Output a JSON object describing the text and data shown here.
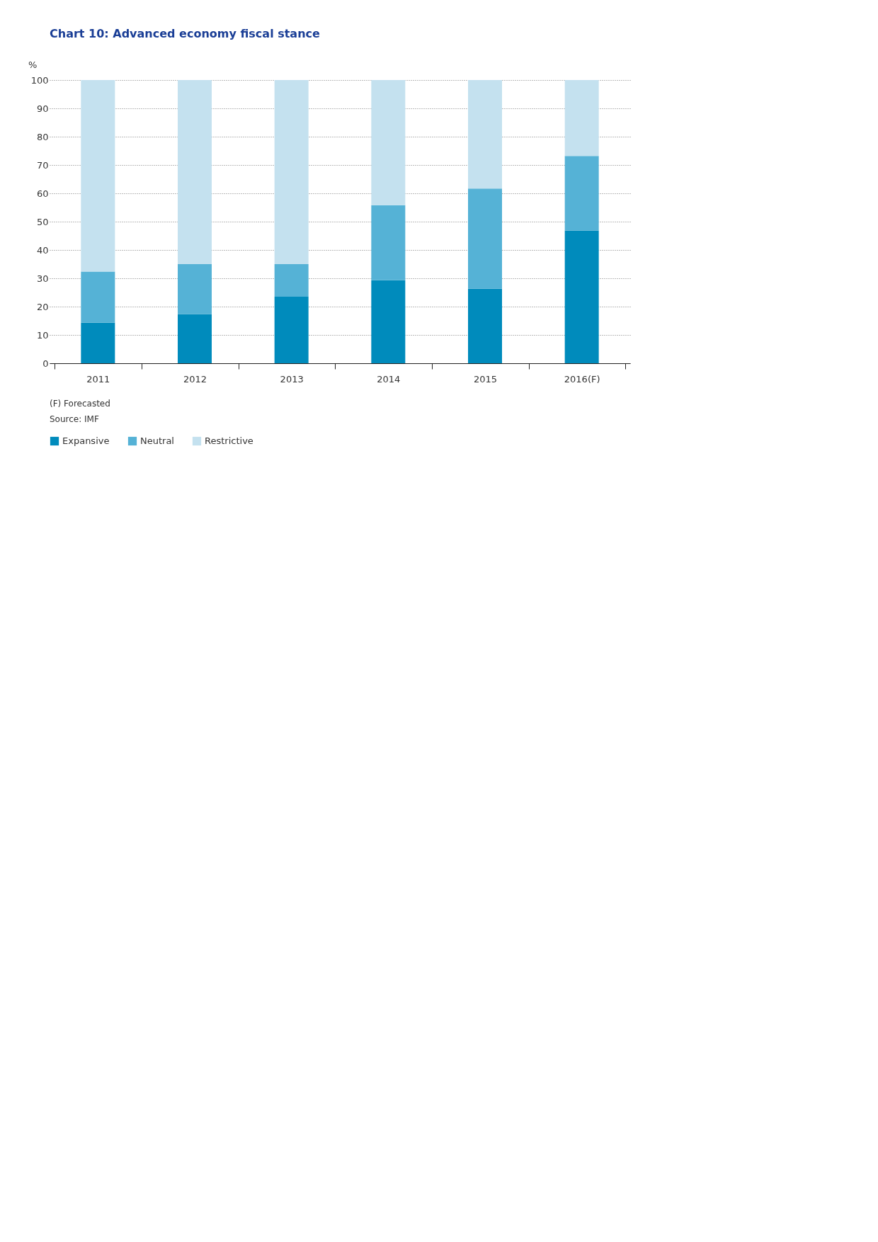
{
  "chart_data": {
    "type": "bar",
    "title": "Chart 10: Advanced economy fiscal stance",
    "ylabel": "%",
    "categories": [
      "2011",
      "2012",
      "2013",
      "2014",
      "2015",
      "2016(F)"
    ],
    "stacked": true,
    "series": [
      {
        "name": "Expansive",
        "color": "#008bbc",
        "values": [
          14.3,
          17.4,
          23.5,
          29.3,
          26.3,
          46.9
        ]
      },
      {
        "name": "Neutral",
        "color": "#55b2d6",
        "values": [
          18.1,
          17.6,
          11.5,
          26.5,
          35.4,
          26.3
        ]
      },
      {
        "name": "Restrictive",
        "color": "#c4e1ef",
        "values": [
          67.6,
          65.0,
          65.0,
          44.2,
          38.3,
          26.8
        ]
      }
    ],
    "ylim": [
      0,
      100
    ],
    "yticks": [
      0,
      10,
      20,
      30,
      40,
      50,
      60,
      70,
      80,
      90,
      100
    ],
    "grid": "y",
    "legend": "bottom left",
    "annotations": [
      "(F) Forecasted",
      "Source: IMF"
    ]
  }
}
